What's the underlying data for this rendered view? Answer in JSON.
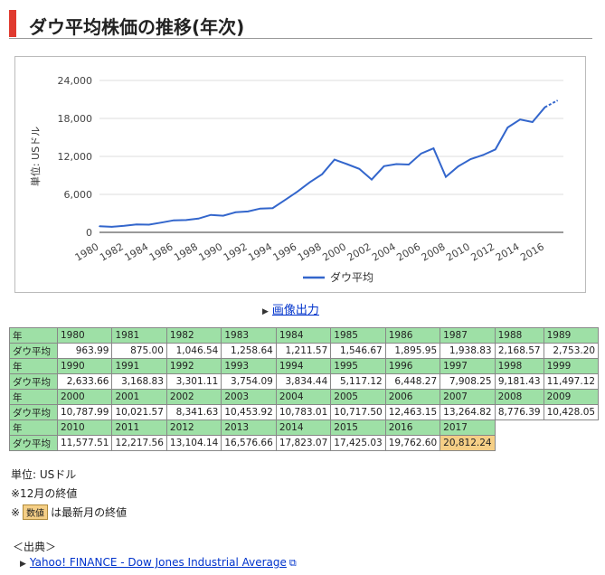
{
  "page": {
    "title": "ダウ平均株価の推移(年次)"
  },
  "chart_data": {
    "type": "line",
    "ylabel": "単位: USドル",
    "xlabel": "",
    "ylim": [
      0,
      24000
    ],
    "yticks": [
      "0",
      "6,000",
      "12,000",
      "18,000",
      "24,000"
    ],
    "ytick_values": [
      0,
      6000,
      12000,
      18000,
      24000
    ],
    "xticks": [
      "1980",
      "1982",
      "1984",
      "1986",
      "1988",
      "1990",
      "1992",
      "1994",
      "1996",
      "1998",
      "2000",
      "2002",
      "2004",
      "2006",
      "2008",
      "2010",
      "2012",
      "2014",
      "2016"
    ],
    "legend": "bottom",
    "grid": true,
    "line_color": "#3366cc",
    "series": [
      {
        "name": "ダウ平均",
        "x": [
          1980,
          1981,
          1982,
          1983,
          1984,
          1985,
          1986,
          1987,
          1988,
          1989,
          1990,
          1991,
          1992,
          1993,
          1994,
          1995,
          1996,
          1997,
          1998,
          1999,
          2000,
          2001,
          2002,
          2003,
          2004,
          2005,
          2006,
          2007,
          2008,
          2009,
          2010,
          2011,
          2012,
          2013,
          2014,
          2015,
          2016,
          2017
        ],
        "values": [
          963.99,
          875.0,
          1046.54,
          1258.64,
          1211.57,
          1546.67,
          1895.95,
          1938.83,
          2168.57,
          2753.2,
          2633.66,
          3168.83,
          3301.11,
          3754.09,
          3834.44,
          5117.12,
          6448.27,
          7908.25,
          9181.43,
          11497.12,
          10787.99,
          10021.57,
          8341.63,
          10453.92,
          10783.01,
          10717.5,
          12463.15,
          13264.82,
          8776.39,
          10428.05,
          11577.51,
          12217.56,
          13104.14,
          16576.66,
          17823.07,
          17425.03,
          19762.6,
          20812.24
        ]
      }
    ]
  },
  "export_link": "画像出力",
  "table": {
    "row_label_year": "年",
    "row_label_value": "ダウ平均",
    "rows": [
      {
        "years": [
          "1980",
          "1981",
          "1982",
          "1983",
          "1984",
          "1985",
          "1986",
          "1987",
          "1988",
          "1989"
        ],
        "values": [
          "963.99",
          "875.00",
          "1,046.54",
          "1,258.64",
          "1,211.57",
          "1,546.67",
          "1,895.95",
          "1,938.83",
          "2,168.57",
          "2,753.20"
        ]
      },
      {
        "years": [
          "1990",
          "1991",
          "1992",
          "1993",
          "1994",
          "1995",
          "1996",
          "1997",
          "1998",
          "1999"
        ],
        "values": [
          "2,633.66",
          "3,168.83",
          "3,301.11",
          "3,754.09",
          "3,834.44",
          "5,117.12",
          "6,448.27",
          "7,908.25",
          "9,181.43",
          "11,497.12"
        ]
      },
      {
        "years": [
          "2000",
          "2001",
          "2002",
          "2003",
          "2004",
          "2005",
          "2006",
          "2007",
          "2008",
          "2009"
        ],
        "values": [
          "10,787.99",
          "10,021.57",
          "8,341.63",
          "10,453.92",
          "10,783.01",
          "10,717.50",
          "12,463.15",
          "13,264.82",
          "8,776.39",
          "10,428.05"
        ]
      },
      {
        "years": [
          "2010",
          "2011",
          "2012",
          "2013",
          "2014",
          "2015",
          "2016",
          "2017"
        ],
        "values": [
          "11,577.51",
          "12,217.56",
          "13,104.14",
          "16,576.66",
          "17,823.07",
          "17,425.03",
          "19,762.60",
          "20,812.24"
        ]
      }
    ],
    "latest_color": "#f5cf86",
    "header_color": "#9ee0a6"
  },
  "notes": {
    "unit": "単位: USドル",
    "month_note": "※12月の終値",
    "latest_prefix": "※",
    "latest_badge": "数値",
    "latest_suffix": "は最新月の終値"
  },
  "source": {
    "heading": "＜出典＞",
    "link": "Yahoo! FINANCE - Dow Jones Industrial Average"
  }
}
